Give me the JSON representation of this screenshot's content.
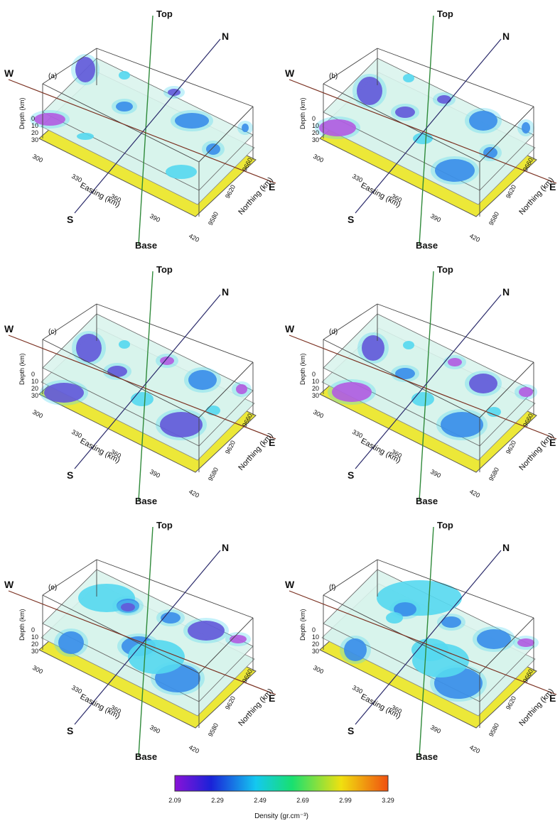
{
  "direction_labels": {
    "top": "Top",
    "base": "Base",
    "north": "N",
    "south": "S",
    "west": "W",
    "east": "E"
  },
  "axes": {
    "depth_label": "Depth (km)",
    "depth_ticks": [
      "0",
      "10",
      "20",
      "30"
    ],
    "easting_label": "Easting (km)",
    "easting_ticks": [
      "300",
      "330",
      "360",
      "390",
      "420"
    ],
    "northing_label": "Northing (km)",
    "northing_ticks": [
      "9580",
      "9620",
      "9660"
    ]
  },
  "panels": [
    {
      "letter": "(a)"
    },
    {
      "letter": "(b)"
    },
    {
      "letter": "(c)"
    },
    {
      "letter": "(d)"
    },
    {
      "letter": "(e)"
    },
    {
      "letter": "(f)"
    }
  ],
  "colorbar": {
    "title": "Density (gr.cm⁻³)",
    "ticks": [
      "2.09",
      "2.29",
      "2.49",
      "2.69",
      "2.99",
      "3.29"
    ],
    "colors": [
      "#8a12d8",
      "#1a22d8",
      "#14c8f0",
      "#18e070",
      "#f0e010",
      "#f05010"
    ]
  },
  "colors": {
    "slice_fill": "#d8f3ec",
    "base_plate": "#ece838",
    "anomaly_light": "#55d8f0",
    "anomaly_mid": "#2a66e6",
    "anomaly_deep": "#6a14cc",
    "anomaly_peak": "#e41ad8"
  }
}
